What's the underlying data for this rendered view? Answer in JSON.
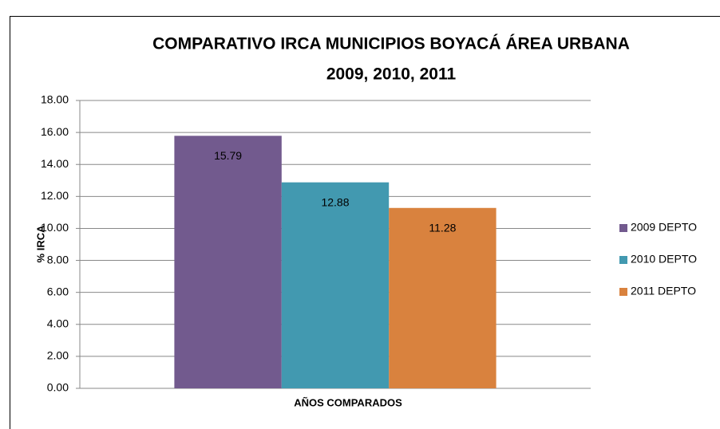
{
  "chart_data": {
    "type": "bar",
    "title": [
      "COMPARATIVO IRCA MUNICIPIOS BOYACÁ ÁREA URBANA",
      "2009, 2010, 2011"
    ],
    "x_label": "AÑOS COMPARADOS",
    "y_label": "% IRCA",
    "categories": [
      null
    ],
    "series": [
      {
        "name": "2009 DEPTO",
        "color": "#725a8e",
        "values": [
          15.79
        ]
      },
      {
        "name": "2010 DEPTO",
        "color": "#4299b0",
        "values": [
          12.88
        ]
      },
      {
        "name": "2011 DEPTO",
        "color": "#d9823e",
        "values": [
          11.28
        ]
      }
    ],
    "ylim": [
      0,
      18
    ],
    "yticks": [
      {
        "value": 0,
        "label": "0.00"
      },
      {
        "value": 2,
        "label": "2.00"
      },
      {
        "value": 4,
        "label": "4.00"
      },
      {
        "value": 6,
        "label": "6.00"
      },
      {
        "value": 8,
        "label": "8.00"
      },
      {
        "value": 10,
        "label": "10.00"
      },
      {
        "value": 12,
        "label": "12.00"
      },
      {
        "value": 14,
        "label": "14.00"
      },
      {
        "value": 16,
        "label": "16.00"
      },
      {
        "value": 18,
        "label": "18.00"
      }
    ],
    "grid": true,
    "legend": "right"
  }
}
